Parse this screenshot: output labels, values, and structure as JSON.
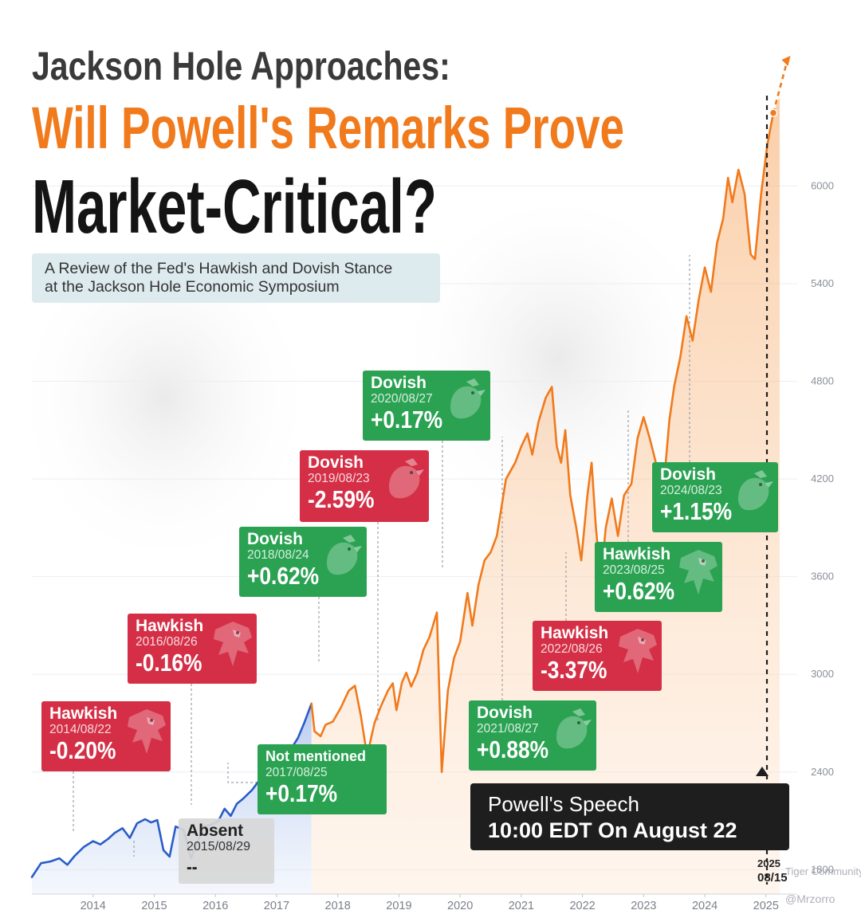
{
  "title": {
    "line1": "Jackson Hole Approaches:",
    "line2": "Will Powell's Remarks Prove",
    "line3": "Market-Critical?"
  },
  "subtitle": {
    "line1": "A Review of the Fed's Hawkish and Dovish Stance",
    "line2": "at the Jackson Hole Economic Symposium"
  },
  "colors": {
    "hawkish": "#d42f46",
    "dovish": "#2aa252",
    "line_pre_powell": "#2a5cc7",
    "line_powell": "#f07a1c",
    "title_accent": "#f07a1c"
  },
  "cards": [
    {
      "stance": "Hawkish",
      "date": "2014/08/22",
      "change": "-0.20%",
      "tone": "hawkish",
      "icon": "hawk-icon"
    },
    {
      "stance": "Absent",
      "date": "2015/08/29",
      "change": "--",
      "tone": "neutral",
      "icon": ""
    },
    {
      "stance": "Hawkish",
      "date": "2016/08/26",
      "change": "-0.16%",
      "tone": "hawkish",
      "icon": "hawk-icon"
    },
    {
      "stance": "Not mentioned",
      "date": "2017/08/25",
      "change": "+0.17%",
      "tone": "dovish",
      "icon": ""
    },
    {
      "stance": "Dovish",
      "date": "2018/08/24",
      "change": "+0.62%",
      "tone": "dovish",
      "icon": "dove-icon"
    },
    {
      "stance": "Dovish",
      "date": "2019/08/23",
      "change": "-2.59%",
      "tone": "hawkish",
      "icon": "dove-icon"
    },
    {
      "stance": "Dovish",
      "date": "2020/08/27",
      "change": "+0.17%",
      "tone": "dovish",
      "icon": "dove-icon"
    },
    {
      "stance": "Dovish",
      "date": "2021/08/27",
      "change": "+0.88%",
      "tone": "dovish",
      "icon": "dove-icon"
    },
    {
      "stance": "Hawkish",
      "date": "2022/08/26",
      "change": "-3.37%",
      "tone": "hawkish",
      "icon": "hawk-icon"
    },
    {
      "stance": "Hawkish",
      "date": "2023/08/25",
      "change": "+0.62%",
      "tone": "dovish",
      "icon": "hawk-icon"
    },
    {
      "stance": "Dovish",
      "date": "2024/08/23",
      "change": "+1.15%",
      "tone": "dovish",
      "icon": "dove-icon"
    }
  ],
  "speech": {
    "line1": "Powell's Speech",
    "line2": "10:00 EDT On August 22"
  },
  "last_point_label": {
    "line1": "2025",
    "line2": "08/15"
  },
  "watermark": {
    "community": "Tiger Community",
    "handle": "@Mrzorro"
  },
  "chart_data": {
    "type": "line",
    "x_ticks": [
      "2014",
      "2015",
      "2016",
      "2017",
      "2018",
      "2019",
      "2020",
      "2021",
      "2022",
      "2023",
      "2024",
      "2025"
    ],
    "y_ticks": [
      1800,
      2400,
      3000,
      3600,
      4200,
      4800,
      5400,
      6000
    ],
    "ylim": [
      1650,
      6800
    ],
    "xlim": [
      2013.5,
      2025.75
    ],
    "grid": true,
    "series": [
      {
        "segment": "pre_powell",
        "color": "#2a5cc7",
        "points": [
          [
            2013.5,
            1755
          ],
          [
            2013.65,
            1840
          ],
          [
            2013.8,
            1850
          ],
          [
            2013.95,
            1870
          ],
          [
            2014.08,
            1830
          ],
          [
            2014.2,
            1885
          ],
          [
            2014.35,
            1940
          ],
          [
            2014.5,
            1975
          ],
          [
            2014.62,
            1955
          ],
          [
            2014.75,
            1990
          ],
          [
            2014.85,
            2025
          ],
          [
            2014.98,
            2055
          ],
          [
            2015.1,
            1995
          ],
          [
            2015.22,
            2085
          ],
          [
            2015.35,
            2110
          ],
          [
            2015.45,
            2090
          ],
          [
            2015.55,
            2105
          ],
          [
            2015.65,
            1920
          ],
          [
            2015.75,
            1880
          ],
          [
            2015.85,
            2065
          ],
          [
            2015.98,
            2045
          ],
          [
            2016.1,
            1870
          ],
          [
            2016.18,
            1940
          ],
          [
            2016.3,
            2065
          ],
          [
            2016.42,
            2075
          ],
          [
            2016.55,
            2100
          ],
          [
            2016.65,
            2175
          ],
          [
            2016.75,
            2130
          ],
          [
            2016.85,
            2205
          ],
          [
            2016.95,
            2235
          ],
          [
            2017.1,
            2290
          ],
          [
            2017.25,
            2365
          ],
          [
            2017.4,
            2420
          ],
          [
            2017.55,
            2460
          ],
          [
            2017.65,
            2470
          ],
          [
            2017.75,
            2550
          ],
          [
            2017.85,
            2610
          ],
          [
            2017.95,
            2700
          ],
          [
            2018.07,
            2820
          ]
        ]
      },
      {
        "segment": "powell",
        "color": "#f07a1c",
        "points": [
          [
            2018.07,
            2820
          ],
          [
            2018.12,
            2650
          ],
          [
            2018.22,
            2620
          ],
          [
            2018.3,
            2690
          ],
          [
            2018.42,
            2710
          ],
          [
            2018.55,
            2795
          ],
          [
            2018.68,
            2900
          ],
          [
            2018.78,
            2930
          ],
          [
            2018.88,
            2740
          ],
          [
            2018.98,
            2500
          ],
          [
            2019.1,
            2700
          ],
          [
            2019.2,
            2800
          ],
          [
            2019.32,
            2900
          ],
          [
            2019.4,
            2945
          ],
          [
            2019.46,
            2780
          ],
          [
            2019.55,
            2950
          ],
          [
            2019.62,
            3010
          ],
          [
            2019.7,
            2925
          ],
          [
            2019.8,
            3010
          ],
          [
            2019.9,
            3150
          ],
          [
            2020.0,
            3230
          ],
          [
            2020.12,
            3380
          ],
          [
            2020.2,
            2400
          ],
          [
            2020.3,
            2900
          ],
          [
            2020.4,
            3100
          ],
          [
            2020.5,
            3200
          ],
          [
            2020.62,
            3500
          ],
          [
            2020.7,
            3300
          ],
          [
            2020.8,
            3550
          ],
          [
            2020.9,
            3700
          ],
          [
            2021.0,
            3750
          ],
          [
            2021.1,
            3850
          ],
          [
            2021.25,
            4200
          ],
          [
            2021.4,
            4300
          ],
          [
            2021.5,
            4400
          ],
          [
            2021.6,
            4480
          ],
          [
            2021.68,
            4350
          ],
          [
            2021.78,
            4550
          ],
          [
            2021.9,
            4700
          ],
          [
            2022.0,
            4766
          ],
          [
            2022.08,
            4400
          ],
          [
            2022.15,
            4300
          ],
          [
            2022.22,
            4500
          ],
          [
            2022.3,
            4100
          ],
          [
            2022.4,
            3900
          ],
          [
            2022.48,
            3700
          ],
          [
            2022.58,
            4100
          ],
          [
            2022.65,
            4300
          ],
          [
            2022.72,
            3900
          ],
          [
            2022.8,
            3580
          ],
          [
            2022.88,
            3900
          ],
          [
            2022.98,
            4080
          ],
          [
            2023.08,
            3850
          ],
          [
            2023.18,
            4100
          ],
          [
            2023.3,
            4170
          ],
          [
            2023.4,
            4450
          ],
          [
            2023.5,
            4580
          ],
          [
            2023.6,
            4450
          ],
          [
            2023.7,
            4300
          ],
          [
            2023.82,
            4120
          ],
          [
            2023.92,
            4560
          ],
          [
            2024.0,
            4770
          ],
          [
            2024.1,
            4950
          ],
          [
            2024.2,
            5200
          ],
          [
            2024.3,
            5050
          ],
          [
            2024.4,
            5300
          ],
          [
            2024.5,
            5500
          ],
          [
            2024.6,
            5350
          ],
          [
            2024.7,
            5650
          ],
          [
            2024.8,
            5800
          ],
          [
            2024.88,
            6050
          ],
          [
            2024.95,
            5900
          ],
          [
            2025.05,
            6100
          ],
          [
            2025.15,
            5950
          ],
          [
            2025.25,
            5580
          ],
          [
            2025.32,
            5550
          ],
          [
            2025.42,
            5950
          ],
          [
            2025.52,
            6250
          ],
          [
            2025.62,
            6449
          ]
        ]
      }
    ],
    "forecast_arrow": {
      "from": [
        2025.62,
        6449
      ],
      "to": [
        2025.9,
        6800
      ]
    },
    "last_point": [
      2025.62,
      6449
    ]
  }
}
